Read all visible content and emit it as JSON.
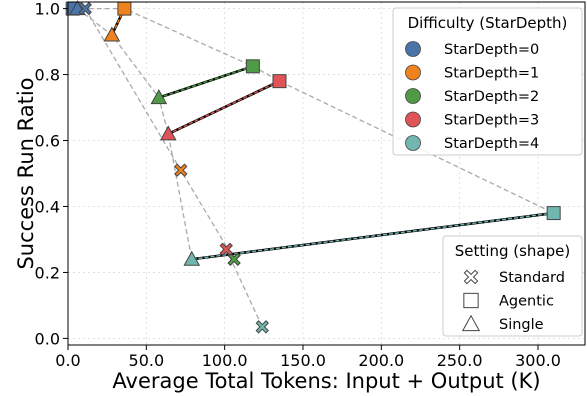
{
  "chart_data": {
    "type": "scatter",
    "xlabel": "Average Total Tokens: Input + Output (K)",
    "ylabel": "Success Run Ratio",
    "xlim": [
      0,
      330
    ],
    "ylim": [
      -0.02,
      1.02
    ],
    "xticks": [
      0,
      50,
      100,
      150,
      200,
      250,
      300
    ],
    "xtick_labels": [
      "0.0",
      "50.0",
      "100.0",
      "150.0",
      "200.0",
      "250.0",
      "300.0"
    ],
    "yticks": [
      0.0,
      0.2,
      0.4,
      0.6,
      0.8,
      1.0
    ],
    "ytick_labels": [
      "0.0",
      "0.2",
      "0.4",
      "0.6",
      "0.8",
      "1.0"
    ],
    "grid": true,
    "series": [
      {
        "name": "StarDepth=0",
        "color": "#4a74a8",
        "points": [
          {
            "setting": "Agentic",
            "x": 3,
            "y": 1.0
          },
          {
            "setting": "Single",
            "x": 6,
            "y": 1.0
          },
          {
            "setting": "Standard",
            "x": 11,
            "y": 1.0
          }
        ]
      },
      {
        "name": "StarDepth=1",
        "color": "#f0821e",
        "points": [
          {
            "setting": "Agentic",
            "x": 36,
            "y": 1.0
          },
          {
            "setting": "Single",
            "x": 28,
            "y": 0.92
          },
          {
            "setting": "Standard",
            "x": 72,
            "y": 0.51
          }
        ]
      },
      {
        "name": "StarDepth=2",
        "color": "#4e9a45",
        "points": [
          {
            "setting": "Agentic",
            "x": 118,
            "y": 0.825
          },
          {
            "setting": "Single",
            "x": 58,
            "y": 0.73
          },
          {
            "setting": "Standard",
            "x": 106,
            "y": 0.24
          }
        ]
      },
      {
        "name": "StarDepth=3",
        "color": "#e05458",
        "points": [
          {
            "setting": "Agentic",
            "x": 135,
            "y": 0.78
          },
          {
            "setting": "Single",
            "x": 64,
            "y": 0.62
          },
          {
            "setting": "Standard",
            "x": 101,
            "y": 0.27
          }
        ]
      },
      {
        "name": "StarDepth=4",
        "color": "#72b6b0",
        "points": [
          {
            "setting": "Agentic",
            "x": 310,
            "y": 0.38
          },
          {
            "setting": "Single",
            "x": 79,
            "y": 0.24
          },
          {
            "setting": "Standard",
            "x": 124,
            "y": 0.035
          }
        ]
      }
    ],
    "dashed_gray_paths": {
      "Agentic": [
        0,
        1,
        2,
        3,
        4
      ],
      "Single": [
        0,
        1,
        2,
        3,
        4
      ],
      "Standard": [
        0,
        1,
        2,
        3,
        4
      ]
    },
    "legends": [
      {
        "title": "Difficulty (StarDepth)",
        "placement": "top-right",
        "entries": [
          "StarDepth=0",
          "StarDepth=1",
          "StarDepth=2",
          "StarDepth=3",
          "StarDepth=4"
        ]
      },
      {
        "title": "Setting (shape)",
        "placement": "bottom-right",
        "entries": [
          {
            "label": "Standard",
            "shape": "x-marker"
          },
          {
            "label": "Agentic",
            "shape": "square-marker"
          },
          {
            "label": "Single",
            "shape": "triangle-marker"
          }
        ]
      }
    ]
  }
}
